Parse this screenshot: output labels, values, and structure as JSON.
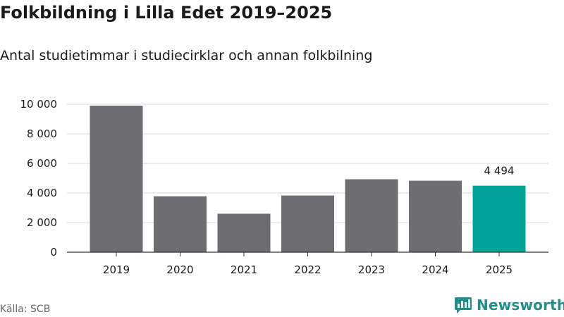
{
  "title": "Folkbildning i Lilla Edet 2019–2025",
  "subtitle": "Antal studietimmar i studiecirklar och annan folkbilning",
  "source": "Källa: SCB",
  "brand": {
    "name": "Newsworthy",
    "icon": "newsworthy-logo-icon"
  },
  "colors": {
    "bar": "#6d6d72",
    "highlight": "#00a398",
    "grid": "#d9d9d9",
    "axis": "#333333",
    "brand": "#1f8f8a"
  },
  "chart_data": {
    "type": "bar",
    "title": "Folkbildning i Lilla Edet 2019–2025",
    "subtitle": "Antal studietimmar i studiecirklar och annan folkbilning",
    "xlabel": "",
    "ylabel": "",
    "categories": [
      "2019",
      "2020",
      "2021",
      "2022",
      "2023",
      "2024",
      "2025"
    ],
    "values": [
      9900,
      3780,
      2600,
      3830,
      4930,
      4830,
      4494
    ],
    "highlight_index": 6,
    "data_labels": [
      {
        "index": 6,
        "text": "4 494"
      }
    ],
    "ylim": [
      0,
      10000
    ],
    "yticks": [
      0,
      2000,
      4000,
      6000,
      8000,
      10000
    ],
    "ytick_labels": [
      "0",
      "2 000",
      "4 000",
      "6 000",
      "8 000",
      "10 000"
    ],
    "grid": true,
    "legend": "none"
  }
}
